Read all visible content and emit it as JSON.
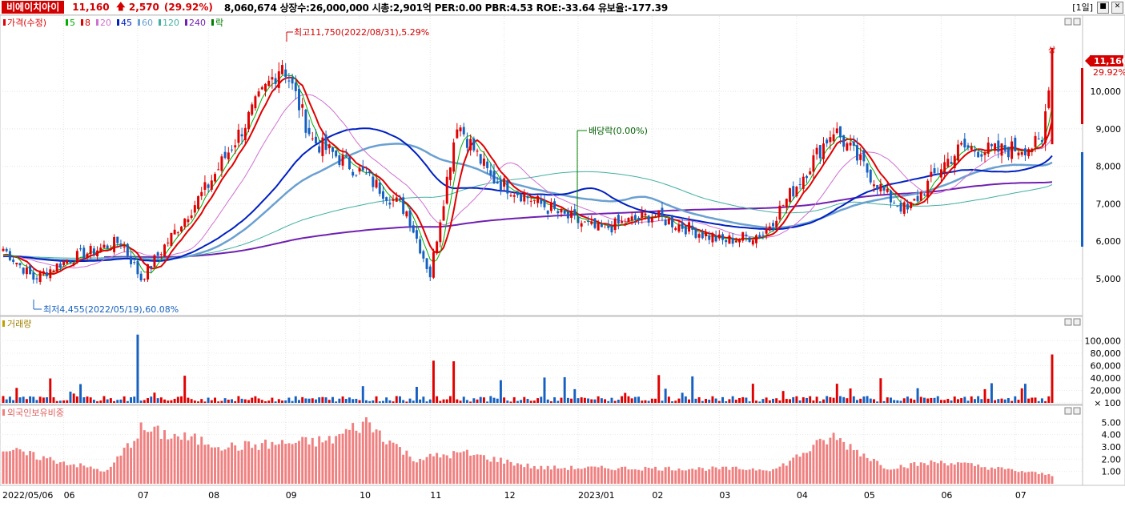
{
  "header": {
    "name": "비에이치아이",
    "price": "11,160",
    "change": "2,570",
    "change_pct": "(29.92%)",
    "stats": "8,060,674  상장수:26,000,000  시총:2,901억  PER:0.00  PBR:4.53  ROE:-33.64  유보율:-177.39",
    "period": "[1일]"
  },
  "colors": {
    "up": "#e00000",
    "down": "#1560c0",
    "ma5": "#00b000",
    "ma8": "#e00000",
    "ma20": "#d070d0",
    "ma45": "#0020c0",
    "ma60": "#6aa0d0",
    "ma120": "#40b0a0",
    "ma240": "#7020b0",
    "foreign": "#f08080",
    "badge": "#d40000"
  },
  "price_legend": [
    {
      "label": "가격(수정)",
      "color": "#e00000"
    },
    {
      "label": "5",
      "color": "#00b000"
    },
    {
      "label": "8",
      "color": "#e00000"
    },
    {
      "label": "20",
      "color": "#d070d0"
    },
    {
      "label": "45",
      "color": "#0020c0"
    },
    {
      "label": "60",
      "color": "#6aa0d0"
    },
    {
      "label": "120",
      "color": "#40b0a0"
    },
    {
      "label": "240",
      "color": "#7020b0"
    },
    {
      "label": "락",
      "color": "#008000"
    }
  ],
  "volume_legend": "거래량",
  "foreign_legend": "외국인보유비중",
  "annotations": {
    "high": "최고11,750(2022/08/31),5.29%",
    "low": "최저4,455(2022/05/19),60.08%",
    "dividend": "배당락(0.00%)",
    "limit": "상",
    "badge_price": "11,160",
    "badge_pct": "29.92%"
  },
  "x_labels": [
    "2022/05/06",
    "06",
    "07",
    "08",
    "09",
    "10",
    "11",
    "12",
    "2023/01",
    "02",
    "03",
    "04",
    "05",
    "06",
    "07"
  ],
  "chart_data": [
    {
      "type": "candlestick",
      "title": "가격(수정)",
      "ylim": [
        4100,
        11800
      ],
      "yticks": [
        5000,
        6000,
        7000,
        8000,
        9000,
        10000
      ],
      "ytick_labels": [
        "5,000",
        "6,000",
        "7,000",
        "8,000",
        "9,000",
        "10,000"
      ],
      "anchor_dates": [
        "2022/05/06",
        "2022/05/19",
        "2022/06/02",
        "2022/06/24",
        "2022/07/04",
        "2022/08/01",
        "2022/08/31",
        "2022/09/13",
        "2022/10/04",
        "2022/10/21",
        "2022/11/01",
        "2022/11/11",
        "2022/11/25",
        "2022/12/26",
        "2023/01/10",
        "2023/02/01",
        "2023/03/02",
        "2023/03/20",
        "2023/04/03",
        "2023/04/18",
        "2023/05/10",
        "2023/05/18",
        "2023/06/01",
        "2023/06/09",
        "2023/06/23",
        "2023/07/13",
        "2023/07/18"
      ],
      "anchor_close": [
        5800,
        5000,
        5500,
        6000,
        5000,
        7500,
        10800,
        8700,
        7800,
        6800,
        5100,
        9200,
        7700,
        6700,
        6300,
        6700,
        6000,
        6200,
        7500,
        9000,
        7200,
        6800,
        8000,
        8500,
        8400,
        8590,
        11160
      ],
      "series_names": [
        "5",
        "8",
        "20",
        "45",
        "60",
        "120",
        "240"
      ]
    },
    {
      "type": "bar",
      "title": "거래량",
      "ylim": [
        0,
        120000
      ],
      "yticks": [
        100,
        20000,
        40000,
        60000,
        80000,
        100000
      ],
      "ytick_labels": [
        "× 100",
        "20,000",
        "40,000",
        "60,000",
        "80,000",
        "100,000"
      ],
      "spikes": [
        {
          "date": "2022/07/01",
          "value": 110000
        },
        {
          "date": "2022/11/02",
          "value": 68000
        },
        {
          "date": "2022/11/10",
          "value": 67000
        },
        {
          "date": "2023/07/18",
          "value": 78000
        }
      ]
    },
    {
      "type": "bar",
      "title": "외국인보유비중",
      "ylim": [
        0,
        5.8
      ],
      "yticks": [
        1.0,
        2.0,
        3.0,
        4.0,
        5.0
      ],
      "ytick_labels": [
        "1.00",
        "2.00",
        "3.00",
        "4.00",
        "5.00"
      ],
      "levels": [
        {
          "date": "2022/05/06",
          "value": 2.8
        },
        {
          "date": "2022/06/20",
          "value": 1.0
        },
        {
          "date": "2022/07/04",
          "value": 4.4
        },
        {
          "date": "2022/08/10",
          "value": 3.0
        },
        {
          "date": "2022/09/20",
          "value": 3.5
        },
        {
          "date": "2022/10/05",
          "value": 5.0
        },
        {
          "date": "2022/10/25",
          "value": 2.0
        },
        {
          "date": "2022/11/15",
          "value": 2.5
        },
        {
          "date": "2022/12/15",
          "value": 1.3
        },
        {
          "date": "2023/03/25",
          "value": 1.2
        },
        {
          "date": "2023/04/10",
          "value": 3.0
        },
        {
          "date": "2023/04/18",
          "value": 3.8
        },
        {
          "date": "2023/05/10",
          "value": 1.3
        },
        {
          "date": "2023/06/01",
          "value": 1.8
        },
        {
          "date": "2023/07/18",
          "value": 0.7
        }
      ]
    }
  ]
}
